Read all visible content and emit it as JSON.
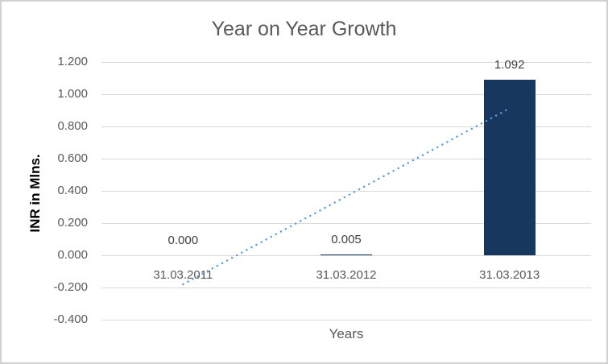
{
  "chart_data": {
    "type": "bar",
    "title": "Year on Year Growth",
    "xlabel": "Years",
    "ylabel": "INR in Mlns.",
    "categories": [
      "31.03.2011",
      "31.03.2012",
      "31.03.2013"
    ],
    "values": [
      0.0,
      0.005,
      1.092
    ],
    "data_labels": [
      "0.000",
      "0.005",
      "1.092"
    ],
    "y_ticks": [
      1.2,
      1.0,
      0.8,
      0.6,
      0.4,
      0.2,
      0.0,
      -0.2,
      -0.4
    ],
    "y_tick_labels": [
      "1.200",
      "1.000",
      "0.800",
      "0.600",
      "0.400",
      "0.200",
      "0.000",
      "-0.200",
      "-0.400"
    ],
    "ylim": [
      -0.4,
      1.2
    ],
    "grid": true,
    "legend": "none",
    "trendline": {
      "type": "linear",
      "style": "dotted",
      "start_value": -0.18,
      "end_value": 0.912
    },
    "colors": {
      "bar": "#17375E",
      "trendline": "#5B9BD5",
      "gridline": "#D9D9D9",
      "axis_text": "#595959",
      "title_text": "#595959",
      "data_label_text": "#404040",
      "y_axis_title_text": "#000000",
      "chart_border": "#D1D1D1",
      "background": "#FFFFFF"
    }
  }
}
